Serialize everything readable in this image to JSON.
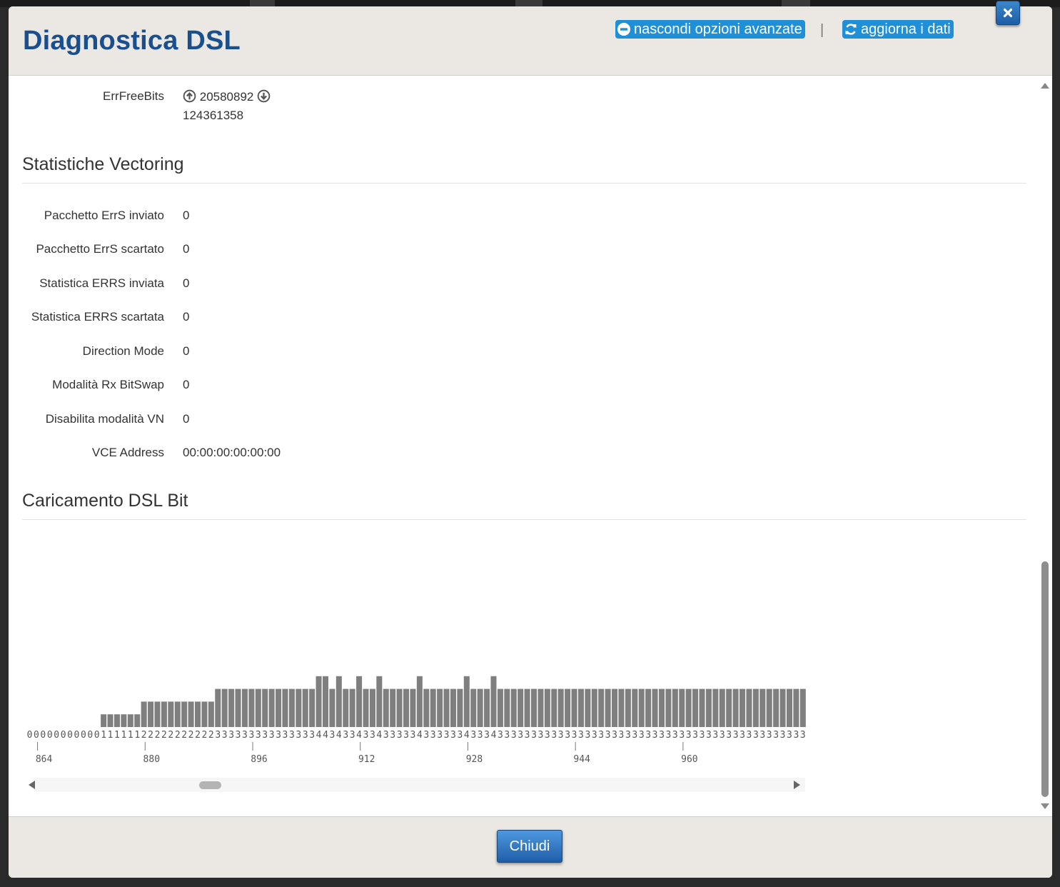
{
  "modal": {
    "title": "Diagnostica DSL",
    "hide_advanced_label": "nascondi opzioni avanzate",
    "separator": "|",
    "refresh_label": "aggiorna i dati",
    "close_icon": "close-x-icon",
    "accent_color": "#1f8fd8",
    "title_color": "#1a4f8f"
  },
  "errfreebits": {
    "label": "ErrFreeBits",
    "upstream": "20580892",
    "downstream": "124361358"
  },
  "vectoring": {
    "title": "Statistiche Vectoring",
    "rows": [
      {
        "label": "Pacchetto ErrS inviato",
        "value": "0"
      },
      {
        "label": "Pacchetto ErrS scartato",
        "value": "0"
      },
      {
        "label": "Statistica ERRS inviata",
        "value": "0"
      },
      {
        "label": "Statistica ERRS scartata",
        "value": "0"
      },
      {
        "label": "Direction Mode",
        "value": "0"
      },
      {
        "label": "Modalità Rx BitSwap",
        "value": "0"
      },
      {
        "label": "Disabilita modalità VN",
        "value": "0"
      },
      {
        "label": "VCE Address",
        "value": "00:00:00:00:00:00"
      }
    ]
  },
  "bitloading": {
    "title": "Caricamento DSL Bit"
  },
  "chart_data": {
    "type": "bar",
    "x_start": 864,
    "x_ticks": [
      864,
      880,
      896,
      912,
      928,
      944,
      960
    ],
    "values": [
      0,
      0,
      0,
      0,
      0,
      0,
      0,
      0,
      0,
      0,
      0,
      1,
      1,
      1,
      1,
      1,
      1,
      2,
      2,
      2,
      2,
      2,
      2,
      2,
      2,
      2,
      2,
      2,
      3,
      3,
      3,
      3,
      3,
      3,
      3,
      3,
      3,
      3,
      3,
      3,
      3,
      3,
      3,
      4,
      4,
      3,
      4,
      3,
      3,
      4,
      3,
      3,
      4,
      3,
      3,
      3,
      3,
      3,
      4,
      3,
      3,
      3,
      3,
      3,
      3,
      4,
      3,
      3,
      3,
      4,
      3,
      3,
      3,
      3,
      3,
      3,
      3,
      3,
      3,
      3,
      3,
      3,
      3,
      3,
      3,
      3,
      3,
      3,
      3,
      3,
      3,
      3,
      3,
      3,
      3,
      3,
      3,
      3,
      3,
      3,
      3,
      3,
      3,
      3,
      3,
      3,
      3,
      3,
      3,
      3,
      3,
      3,
      3,
      3,
      3,
      3,
      3
    ],
    "bar_color": "#7f7f7f",
    "grid": false
  },
  "footer": {
    "close_label": "Chiudi"
  }
}
